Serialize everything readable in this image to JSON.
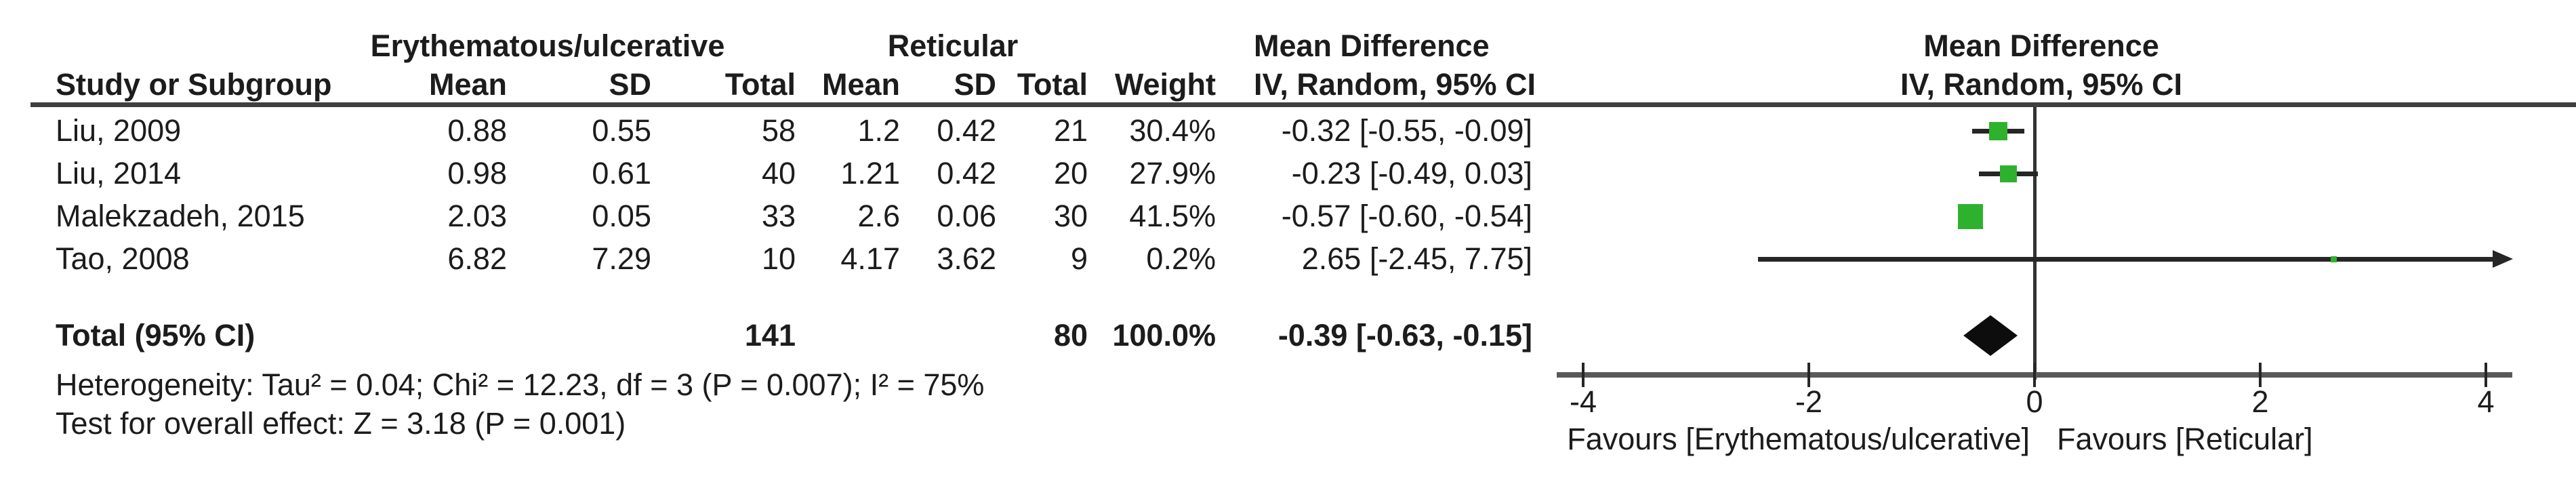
{
  "table": {
    "header": {
      "group1": "Erythematous/ulcerative",
      "group2": "Reticular",
      "study_col": "Study or Subgroup",
      "mean1": "Mean",
      "sd1": "SD",
      "total1": "Total",
      "mean2": "Mean",
      "sd2": "SD",
      "total2": "Total",
      "weight": "Weight",
      "md_line1": "Mean Difference",
      "md_line2": "IV, Random, 95% CI",
      "plot_line1": "Mean Difference",
      "plot_line2": "IV, Random, 95% CI"
    },
    "rows": [
      {
        "study": "Liu, 2009",
        "eu_mean": "0.88",
        "eu_sd": "0.55",
        "eu_total": "58",
        "ret_mean": "1.2",
        "ret_sd": "0.42",
        "ret_total": "21",
        "weight": "30.4%",
        "ci": "-0.32 [-0.55, -0.09]"
      },
      {
        "study": "Liu, 2014",
        "eu_mean": "0.98",
        "eu_sd": "0.61",
        "eu_total": "40",
        "ret_mean": "1.21",
        "ret_sd": "0.42",
        "ret_total": "20",
        "weight": "27.9%",
        "ci": "-0.23 [-0.49, 0.03]"
      },
      {
        "study": "Malekzadeh, 2015",
        "eu_mean": "2.03",
        "eu_sd": "0.05",
        "eu_total": "33",
        "ret_mean": "2.6",
        "ret_sd": "0.06",
        "ret_total": "30",
        "weight": "41.5%",
        "ci": "-0.57 [-0.60, -0.54]"
      },
      {
        "study": "Tao, 2008",
        "eu_mean": "6.82",
        "eu_sd": "7.29",
        "eu_total": "10",
        "ret_mean": "4.17",
        "ret_sd": "3.62",
        "ret_total": "9",
        "weight": "0.2%",
        "ci": "2.65 [-2.45, 7.75]"
      }
    ],
    "total_row": {
      "label": "Total (95% CI)",
      "eu_total": "141",
      "ret_total": "80",
      "weight": "100.0%",
      "ci": "-0.39 [-0.63, -0.15]"
    },
    "footer": {
      "heterogeneity": "Heterogeneity: Tau² = 0.04; Chi² = 12.23, df = 3 (P = 0.007); I² = 75%",
      "overall_effect": "Test for overall effect: Z = 3.18 (P = 0.001)"
    }
  },
  "chart_data": {
    "type": "forest",
    "effect_measure": "Mean Difference",
    "model": "IV, Random, 95% CI",
    "x_axis": {
      "min": -4,
      "max": 4,
      "ticks": [
        -4,
        -2,
        0,
        2,
        4
      ],
      "label_left": "Favours [Erythematous/ulcerative]",
      "label_right": "Favours [Reticular]"
    },
    "studies": [
      {
        "name": "Liu, 2009",
        "md": -0.32,
        "ci_low": -0.55,
        "ci_high": -0.09,
        "weight_pct": 30.4
      },
      {
        "name": "Liu, 2014",
        "md": -0.23,
        "ci_low": -0.49,
        "ci_high": 0.03,
        "weight_pct": 27.9
      },
      {
        "name": "Malekzadeh, 2015",
        "md": -0.57,
        "ci_low": -0.6,
        "ci_high": -0.54,
        "weight_pct": 41.5
      },
      {
        "name": "Tao, 2008",
        "md": 2.65,
        "ci_low": -2.45,
        "ci_high": 7.75,
        "weight_pct": 0.2
      }
    ],
    "total": {
      "md": -0.39,
      "ci_low": -0.63,
      "ci_high": -0.15
    },
    "heterogeneity": {
      "tau2": 0.04,
      "chi2": 12.23,
      "df": 3,
      "p": 0.007,
      "i2_pct": 75
    },
    "overall_effect": {
      "z": 3.18,
      "p": 0.001
    },
    "colors": {
      "marker": "#2eb22e",
      "diamond": "#0d0d0d",
      "axis": "#595959",
      "ci_line": "#262626"
    }
  }
}
